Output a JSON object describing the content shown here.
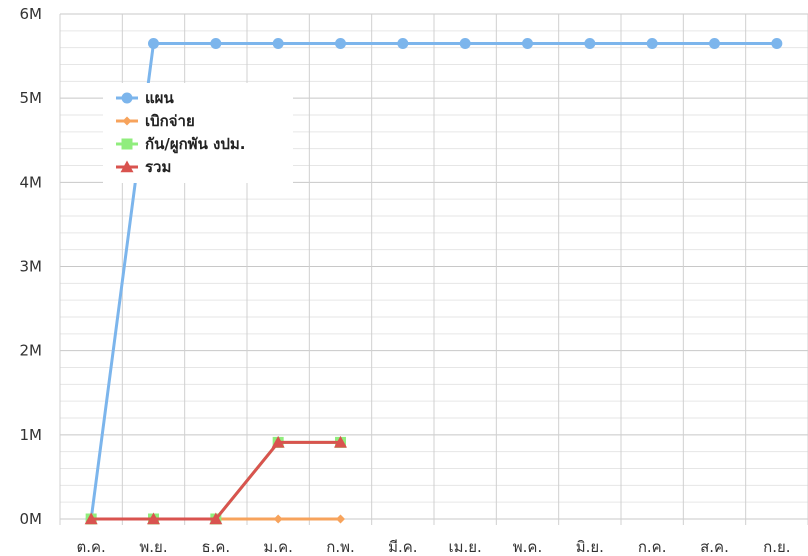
{
  "chart_data": {
    "type": "line",
    "categories": [
      "ต.ค.",
      "พ.ย.",
      "ธ.ค.",
      "ม.ค.",
      "ก.พ.",
      "มี.ค.",
      "เม.ย.",
      "พ.ค.",
      "มิ.ย.",
      "ก.ค.",
      "ส.ค.",
      "ก.ย."
    ],
    "y_ticks": [
      "0M",
      "1M",
      "2M",
      "3M",
      "4M",
      "5M",
      "6M"
    ],
    "ylim": [
      0,
      6000000
    ],
    "grid": true,
    "legend_position": "top-left",
    "series": [
      {
        "name": "แผน",
        "color": "#7cb5ec",
        "marker": "circle",
        "values": [
          0,
          5650000,
          5650000,
          5650000,
          5650000,
          5650000,
          5650000,
          5650000,
          5650000,
          5650000,
          5650000,
          5650000
        ]
      },
      {
        "name": "เบิกจ่าย",
        "color": "#f7a35c",
        "marker": "diamond",
        "values": [
          0,
          0,
          0,
          0,
          0,
          null,
          null,
          null,
          null,
          null,
          null,
          null
        ]
      },
      {
        "name": "กัน/ผูกพัน งปม.",
        "color": "#90ed7d",
        "marker": "square",
        "values": [
          0,
          0,
          0,
          910000,
          910000,
          null,
          null,
          null,
          null,
          null,
          null,
          null
        ]
      },
      {
        "name": "รวม",
        "color": "#d9534f",
        "marker": "triangle",
        "values": [
          0,
          0,
          0,
          910000,
          910000,
          null,
          null,
          null,
          null,
          null,
          null,
          null
        ]
      }
    ]
  }
}
